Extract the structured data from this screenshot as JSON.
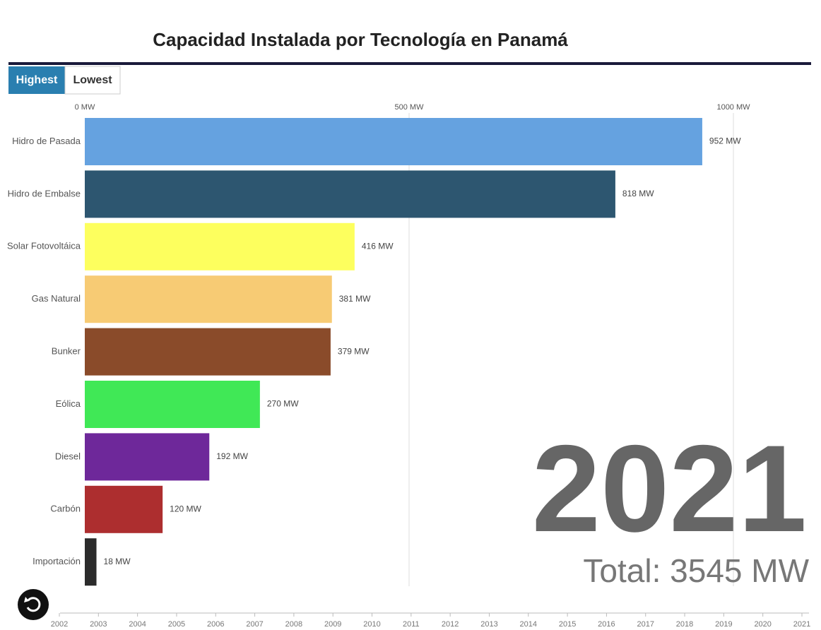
{
  "chart_data": {
    "type": "bar",
    "orientation": "horizontal",
    "title": "Capacidad Instalada por Tecnología en Panamá",
    "categories": [
      "Hidro de Pasada",
      "Hidro de Embalse",
      "Solar Fotovoltáica",
      "Gas Natural",
      "Bunker",
      "Eólica",
      "Diesel",
      "Carbón",
      "Importación"
    ],
    "values": [
      952,
      818,
      416,
      381,
      379,
      270,
      192,
      120,
      18
    ],
    "value_labels": [
      "952 MW",
      "818 MW",
      "416 MW",
      "381 MW",
      "379 MW",
      "270 MW",
      "192 MW",
      "120 MW",
      "18 MW"
    ],
    "colors": [
      "#65a2e0",
      "#2d5670",
      "#fdff5e",
      "#f7cb74",
      "#8a4b2a",
      "#40e856",
      "#6e289a",
      "#ad2e2f",
      "#2b2b2b"
    ],
    "xlim": [
      0,
      1000
    ],
    "xticks": [
      {
        "value": 0,
        "label": "0 MW"
      },
      {
        "value": 500,
        "label": "500 MW"
      },
      {
        "value": 1000,
        "label": "1000 MW"
      }
    ],
    "grid": true
  },
  "year": "2021",
  "total": "Total: 3545 MW",
  "buttons": [
    "Highest",
    "Lowest"
  ],
  "timeline": [
    "2002",
    "2003",
    "2004",
    "2005",
    "2006",
    "2007",
    "2008",
    "2009",
    "2010",
    "2011",
    "2012",
    "2013",
    "2014",
    "2015",
    "2016",
    "2017",
    "2018",
    "2019",
    "2020",
    "2021"
  ]
}
